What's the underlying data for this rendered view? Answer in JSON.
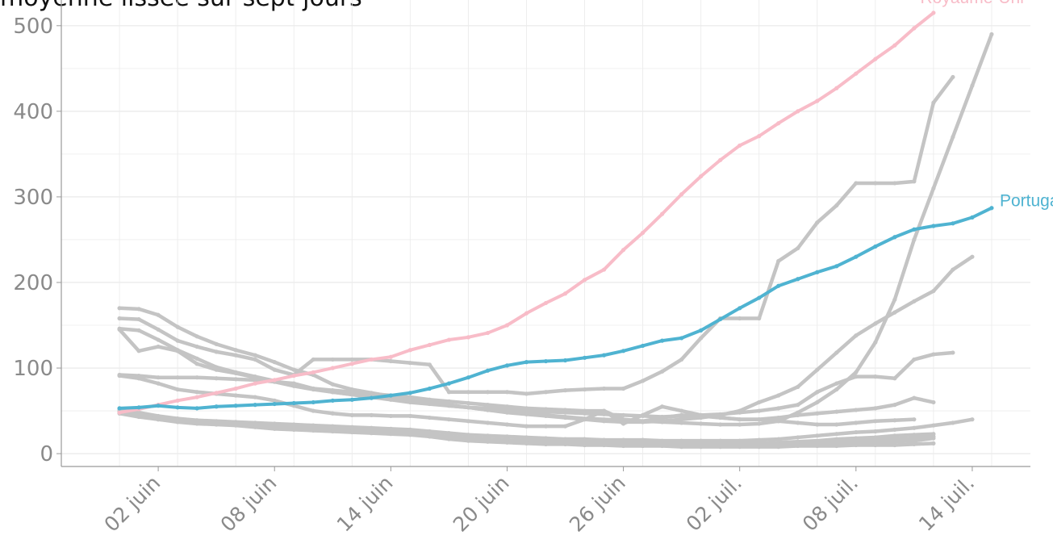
{
  "title": "moyenne lissée sur sept jours",
  "colors": {
    "highlight_uk": "#f8bcc8",
    "highlight_pt": "#4fb3d1",
    "background_series": "#c4c4c4",
    "grid": "#ececec",
    "axis": "#9a9a9a",
    "tick_text": "#8a8a8a"
  },
  "chart_data": {
    "type": "line",
    "title": "moyenne lissée sur sept jours",
    "xlabel": "",
    "ylabel": "",
    "x_start": "2020-05-31",
    "x_end": "2020-07-14",
    "xlim": [
      "2020-05-28",
      "2020-07-17"
    ],
    "ylim": [
      -15,
      530
    ],
    "y_ticks": [
      0,
      100,
      200,
      300,
      400,
      500
    ],
    "x_ticks": [
      {
        "date": "2020-06-02",
        "label": "02 juin"
      },
      {
        "date": "2020-06-08",
        "label": "08 juin"
      },
      {
        "date": "2020-06-14",
        "label": "14 juin"
      },
      {
        "date": "2020-06-20",
        "label": "20 juin"
      },
      {
        "date": "2020-06-26",
        "label": "26 juin"
      },
      {
        "date": "2020-07-02",
        "label": "02 juil."
      },
      {
        "date": "2020-07-08",
        "label": "08 juil."
      },
      {
        "date": "2020-07-14",
        "label": "14 juil."
      }
    ],
    "grid": true,
    "highlighted": [
      {
        "name": "Royaume-Uni",
        "color": "#f8bcc8",
        "values": [
          48,
          52,
          57,
          62,
          66,
          71,
          76,
          82,
          86,
          91,
          95,
          100,
          105,
          110,
          113,
          121,
          127,
          133,
          136,
          141,
          150,
          164,
          176,
          187,
          203,
          215,
          238,
          258,
          280,
          303,
          324,
          343,
          360,
          371,
          386,
          400,
          412,
          427,
          444,
          461,
          477,
          497,
          515
        ]
      },
      {
        "name": "Portugal",
        "color": "#4fb3d1",
        "values": [
          53,
          54,
          56,
          54,
          53,
          55,
          56,
          57,
          58,
          59,
          60,
          62,
          63,
          65,
          68,
          71,
          76,
          82,
          89,
          97,
          103,
          107,
          108,
          109,
          112,
          115,
          120,
          126,
          132,
          135,
          144,
          157,
          170,
          182,
          196,
          204,
          212,
          219,
          230,
          242,
          253,
          262,
          266,
          269,
          276,
          287
        ]
      }
    ],
    "background_series": [
      [
        170,
        169,
        162,
        148,
        137,
        128,
        121,
        115,
        107,
        98,
        92,
        81,
        75,
        71,
        67,
        64,
        60,
        57,
        54,
        51,
        49,
        47,
        45,
        43,
        41,
        40,
        39,
        38,
        37,
        36,
        35,
        34,
        34,
        35,
        38,
        48,
        60,
        75,
        95,
        130,
        180,
        250,
        310,
        370,
        430,
        490
      ],
      [
        158,
        157,
        145,
        132,
        125,
        119,
        115,
        110,
        98,
        92,
        110,
        110,
        110,
        110,
        108,
        106,
        104,
        72,
        72,
        72,
        72,
        70,
        72,
        74,
        75,
        76,
        76,
        85,
        96,
        110,
        135,
        158,
        158,
        158,
        225,
        240,
        270,
        290,
        316,
        316,
        316,
        318,
        410,
        440
      ],
      [
        146,
        144,
        133,
        121,
        111,
        101,
        95,
        90,
        85,
        80,
        76,
        72,
        69,
        66,
        64,
        62,
        59,
        56,
        54,
        51,
        48,
        46,
        44,
        42,
        40,
        38,
        37,
        37,
        38,
        40,
        42,
        45,
        50,
        60,
        68,
        78,
        98,
        118,
        138,
        152,
        165,
        178,
        190,
        215,
        230
      ],
      [
        145,
        120,
        125,
        120,
        105,
        98,
        94,
        89,
        84,
        79,
        75,
        72,
        69,
        66,
        63,
        60,
        58,
        56,
        54,
        53,
        52,
        50,
        49,
        48,
        47,
        46,
        45,
        44,
        43,
        44,
        45,
        46,
        48,
        50,
        53,
        57,
        72,
        82,
        90,
        90,
        88,
        110,
        116,
        118
      ],
      [
        92,
        91,
        89,
        89,
        89,
        88,
        87,
        86,
        84,
        82,
        76,
        74,
        72,
        70,
        68,
        66,
        63,
        61,
        59,
        57,
        55,
        53,
        52,
        51,
        50,
        50,
        40,
        38,
        42,
        45,
        44,
        42,
        40,
        40,
        42,
        45,
        47,
        49,
        51,
        53,
        57,
        65,
        60
      ],
      [
        91,
        88,
        82,
        75,
        72,
        70,
        68,
        66,
        62,
        56,
        50,
        47,
        45,
        45,
        44,
        44,
        42,
        40,
        38,
        36,
        34,
        32,
        32,
        32,
        40,
        50,
        35,
        45,
        55,
        50,
        45,
        42,
        40,
        40,
        38,
        36,
        34,
        34,
        36,
        38,
        39,
        40
      ],
      [
        52,
        48,
        44,
        41,
        39,
        38,
        37,
        36,
        35,
        34,
        33,
        32,
        31,
        30,
        29,
        28,
        26,
        24,
        22,
        21,
        20,
        19,
        18,
        17,
        17,
        16,
        16,
        16,
        15,
        15,
        15,
        15,
        15,
        16,
        17,
        19,
        21,
        23,
        25,
        26,
        28,
        30,
        33,
        36,
        40
      ],
      [
        50,
        46,
        42,
        40,
        38,
        37,
        35,
        34,
        32,
        31,
        30,
        29,
        28,
        27,
        26,
        25,
        22,
        20,
        18,
        17,
        16,
        15,
        15,
        14,
        14,
        13,
        13,
        13,
        12,
        12,
        12,
        12,
        12,
        12,
        13,
        14,
        15,
        17,
        18,
        19,
        21,
        22,
        23
      ],
      [
        49,
        45,
        41,
        39,
        37,
        36,
        35,
        33,
        31,
        30,
        29,
        28,
        27,
        26,
        25,
        24,
        22,
        19,
        17,
        16,
        15,
        14,
        13,
        13,
        12,
        12,
        11,
        11,
        11,
        10,
        10,
        10,
        10,
        10,
        11,
        12,
        13,
        14,
        15,
        16,
        17,
        18,
        20
      ],
      [
        48,
        44,
        40,
        38,
        36,
        35,
        34,
        32,
        30,
        29,
        28,
        27,
        26,
        25,
        24,
        23,
        21,
        18,
        16,
        15,
        14,
        13,
        12,
        12,
        11,
        11,
        10,
        10,
        10,
        9,
        9,
        9,
        9,
        9,
        10,
        10,
        11,
        11,
        12,
        13,
        14,
        15,
        18
      ],
      [
        47,
        43,
        40,
        37,
        35,
        34,
        33,
        31,
        29,
        28,
        27,
        26,
        25,
        24,
        23,
        22,
        20,
        17,
        15,
        14,
        13,
        12,
        11,
        11,
        10,
        10,
        9,
        9,
        9,
        8,
        8,
        8,
        8,
        8,
        8,
        9,
        9,
        9,
        10,
        10,
        10,
        11,
        12
      ]
    ]
  }
}
